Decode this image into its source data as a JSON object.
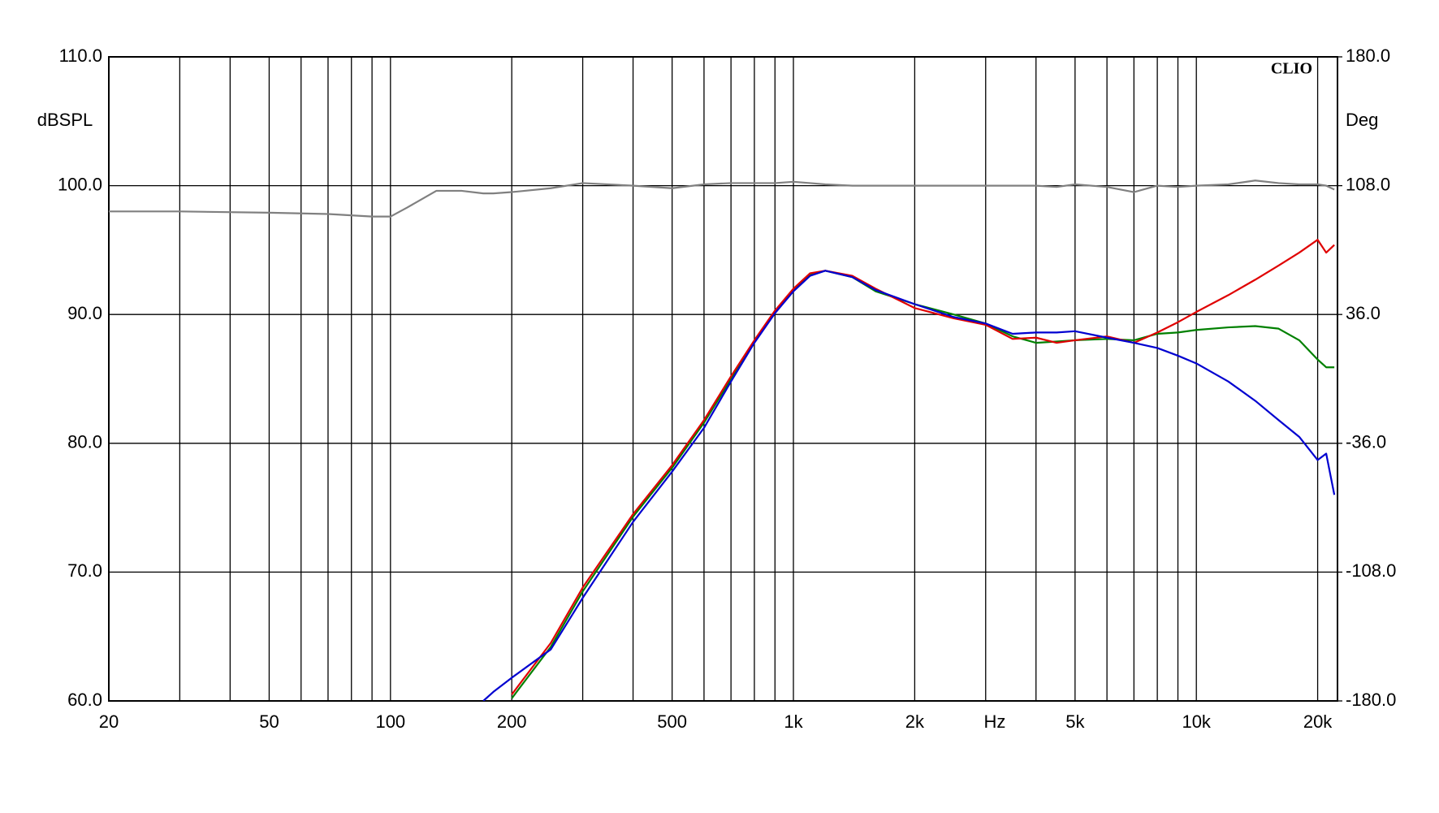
{
  "chart_data": {
    "type": "line",
    "brand": "CLIO",
    "ylabel": "dBSPL",
    "y2label": "Deg",
    "xlabel": "Hz",
    "xscale": "log",
    "grid": true,
    "xlim": [
      20,
      22400
    ],
    "xticks": [
      20,
      50,
      100,
      200,
      500,
      {
        "value": 1000,
        "label": "1k"
      },
      {
        "value": 2000,
        "label": "2k"
      },
      {
        "value": 5000,
        "label": "5k"
      },
      {
        "value": 10000,
        "label": "10k"
      },
      {
        "value": 20000,
        "label": "20k"
      }
    ],
    "xminor": [
      30,
      40,
      60,
      70,
      80,
      90,
      300,
      400,
      600,
      700,
      800,
      900,
      3000,
      4000,
      6000,
      7000,
      8000,
      9000
    ],
    "ylim": [
      60,
      110
    ],
    "yticks": [
      {
        "value": 60,
        "label": "60.0"
      },
      {
        "value": 70,
        "label": "70.0"
      },
      {
        "value": 80,
        "label": "80.0"
      },
      {
        "value": 90,
        "label": "90.0"
      },
      {
        "value": 100,
        "label": "100.0"
      },
      {
        "value": 110,
        "label": "110.0"
      }
    ],
    "y2lim": [
      -180,
      180
    ],
    "y2ticks": [
      {
        "value": -180,
        "label": "-180.0"
      },
      {
        "value": -108,
        "label": "-108.0"
      },
      {
        "value": -36,
        "label": "-36.0"
      },
      {
        "value": 36,
        "label": "36.0"
      },
      {
        "value": 108,
        "label": "108.0"
      },
      {
        "value": 180,
        "label": "180.0"
      }
    ],
    "x": [
      20,
      30,
      50,
      70,
      90,
      100,
      110,
      130,
      150,
      170,
      180,
      200,
      250,
      300,
      400,
      500,
      600,
      700,
      800,
      900,
      1000,
      1100,
      1200,
      1400,
      1600,
      2000,
      2500,
      3000,
      3500,
      4000,
      4500,
      5000,
      6000,
      7000,
      8000,
      9000,
      10000,
      12000,
      14000,
      16000,
      18000,
      20000,
      21000,
      22000
    ],
    "series": [
      {
        "color": "#808080",
        "values": [
          98.0,
          98.0,
          97.9,
          97.8,
          97.6,
          97.6,
          98.3,
          99.6,
          99.6,
          99.4,
          99.4,
          99.5,
          99.8,
          100.2,
          100.0,
          99.8,
          100.1,
          100.2,
          100.2,
          100.2,
          100.3,
          100.2,
          100.1,
          100.0,
          100.0,
          100.0,
          100.0,
          100.0,
          100.0,
          100.0,
          99.9,
          100.1,
          99.9,
          99.5,
          100.0,
          99.9,
          100.0,
          100.1,
          100.4,
          100.2,
          100.1,
          100.1,
          100.0,
          99.7
        ]
      },
      {
        "color": "#008000",
        "values": [
          null,
          null,
          null,
          null,
          null,
          null,
          null,
          null,
          null,
          null,
          null,
          60.2,
          64.2,
          68.5,
          74.3,
          78.1,
          81.6,
          85.0,
          87.9,
          90.2,
          91.9,
          93.1,
          93.4,
          92.9,
          91.8,
          90.8,
          90.0,
          89.3,
          88.3,
          87.8,
          87.9,
          88.0,
          88.1,
          88.0,
          88.5,
          88.6,
          88.8,
          89.0,
          89.1,
          88.9,
          88.0,
          86.5,
          85.9,
          85.9
        ]
      },
      {
        "color": "#e00000",
        "values": [
          null,
          null,
          null,
          null,
          null,
          null,
          null,
          null,
          null,
          null,
          null,
          60.5,
          64.5,
          68.8,
          74.5,
          78.3,
          81.8,
          85.2,
          88.0,
          90.3,
          92.0,
          93.2,
          93.4,
          93.0,
          92.0,
          90.5,
          89.7,
          89.2,
          88.1,
          88.2,
          87.8,
          88.0,
          88.3,
          87.8,
          88.6,
          89.4,
          90.2,
          91.5,
          92.7,
          93.8,
          94.8,
          95.8,
          94.8,
          95.4
        ]
      },
      {
        "color": "#0000d0",
        "values": [
          null,
          null,
          null,
          null,
          null,
          null,
          null,
          null,
          null,
          60.0,
          60.7,
          61.8,
          64.0,
          68.0,
          73.9,
          77.8,
          81.2,
          84.8,
          87.8,
          90.1,
          91.8,
          93.0,
          93.4,
          92.9,
          91.9,
          90.8,
          89.8,
          89.3,
          88.5,
          88.6,
          88.6,
          88.7,
          88.2,
          87.8,
          87.4,
          86.8,
          86.2,
          84.8,
          83.3,
          81.8,
          80.5,
          78.7,
          79.2,
          76.0
        ]
      }
    ]
  }
}
